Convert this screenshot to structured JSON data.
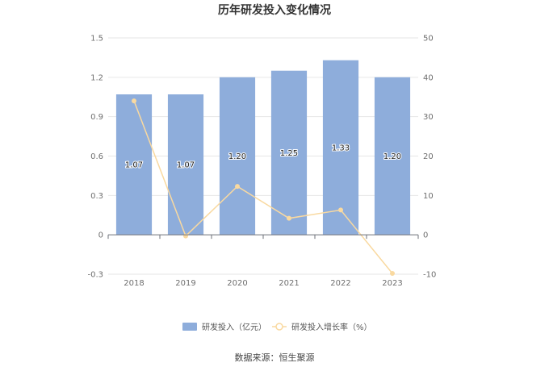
{
  "chart_data": {
    "type": "bar",
    "title": "历年研发投入变化情况",
    "categories": [
      "2018",
      "2019",
      "2020",
      "2021",
      "2022",
      "2023"
    ],
    "series": [
      {
        "name": "研发投入（亿元）",
        "type": "bar",
        "axis": "left",
        "values": [
          1.07,
          1.07,
          1.2,
          1.25,
          1.33,
          1.2
        ],
        "labels": [
          "1.07",
          "1.07",
          "1.20",
          "1.25",
          "1.33",
          "1.20"
        ],
        "color": "#8eaddb"
      },
      {
        "name": "研发投入增长率（%）",
        "type": "line",
        "axis": "right",
        "values": [
          34.0,
          -0.3,
          12.3,
          4.2,
          6.3,
          -9.8
        ],
        "color": "#f9d9a0"
      }
    ],
    "y_left": {
      "ylim": [
        -0.3,
        1.5
      ],
      "ticks": [
        "1.5",
        "1.2",
        "0.9",
        "0.6",
        "0.3",
        "0",
        "-0.3"
      ]
    },
    "y_right": {
      "ylim": [
        -10,
        50
      ],
      "ticks": [
        "50",
        "40",
        "30",
        "20",
        "10",
        "0",
        "-10"
      ]
    },
    "grid": true,
    "legend_position": "bottom"
  },
  "footer": {
    "source": "数据来源：恒生聚源"
  }
}
